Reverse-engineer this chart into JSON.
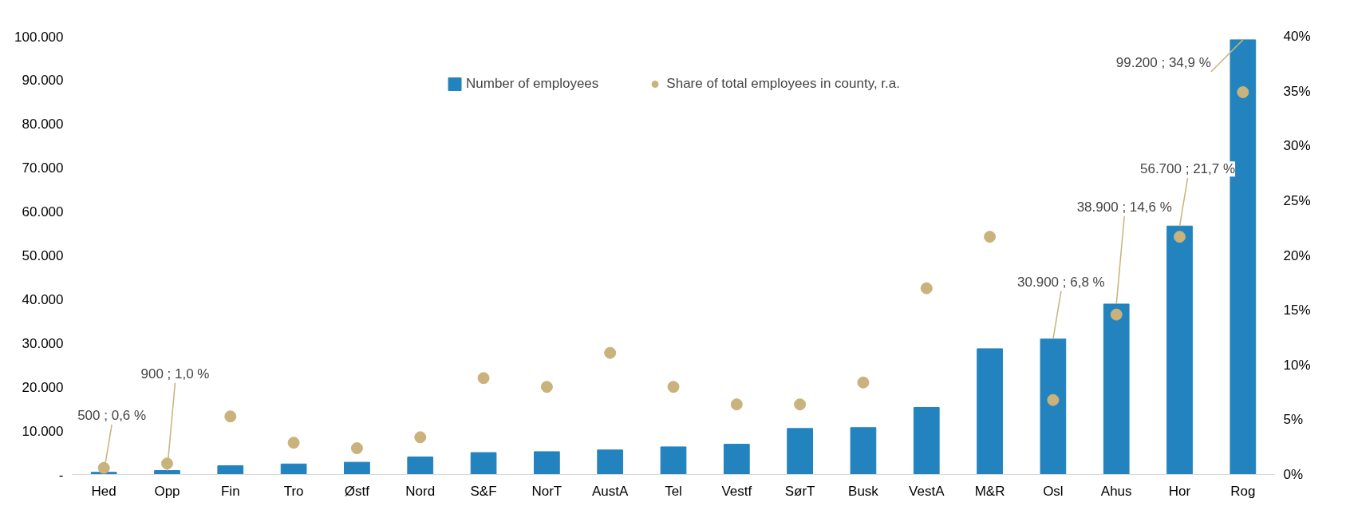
{
  "chart_data": {
    "type": "bar",
    "categories": [
      "Hed",
      "Opp",
      "Fin",
      "Tro",
      "Østf",
      "Nord",
      "S&F",
      "NorT",
      "AustA",
      "Tel",
      "Vestf",
      "SørT",
      "Busk",
      "VestA",
      "M&R",
      "Osl",
      "Ahus",
      "Hor",
      "Rog"
    ],
    "series": [
      {
        "name": "Number of employees",
        "color": "#2383be",
        "values": [
          500,
          900,
          2000,
          2400,
          2800,
          4000,
          5000,
          5200,
          5600,
          6300,
          6900,
          10500,
          10700,
          15300,
          28700,
          30900,
          38900,
          56700,
          99200
        ]
      },
      {
        "name": "Share of total employees in county, r.a.",
        "type": "scatter",
        "axis": "y2",
        "color": "#c9b27c",
        "marker": "circle",
        "x": [
          "Hed",
          "Opp",
          "Fin",
          "Tro",
          "Østf",
          "Nord",
          "S&F",
          "NorT",
          "AustA",
          "Tel",
          "Vestf",
          "SørT",
          "Busk",
          "VestA",
          "M&R",
          "Osl",
          "Ahus",
          "Hor",
          "Rog"
        ],
        "values": [
          0.6,
          1.0,
          5.3,
          2.9,
          2.4,
          3.4,
          8.8,
          8.0,
          11.1,
          8.0,
          6.4,
          6.4,
          8.4,
          17.0,
          21.7,
          6.8,
          14.6,
          21.7,
          34.9
        ]
      }
    ],
    "ylim": [
      0,
      100000
    ],
    "yticks": [
      {
        "value": 0,
        "label": "-"
      },
      {
        "value": 10000,
        "label": "10.000"
      },
      {
        "value": 20000,
        "label": "20.000"
      },
      {
        "value": 30000,
        "label": "30.000"
      },
      {
        "value": 40000,
        "label": "40.000"
      },
      {
        "value": 50000,
        "label": "50.000"
      },
      {
        "value": 60000,
        "label": "60.000"
      },
      {
        "value": 70000,
        "label": "70.000"
      },
      {
        "value": 80000,
        "label": "80.000"
      },
      {
        "value": 90000,
        "label": "90.000"
      },
      {
        "value": 100000,
        "label": "100.000"
      }
    ],
    "y2lim": [
      0,
      40
    ],
    "y2ticks": [
      {
        "value": 0,
        "label": "0%"
      },
      {
        "value": 5,
        "label": "5%"
      },
      {
        "value": 10,
        "label": "10%"
      },
      {
        "value": 15,
        "label": "15%"
      },
      {
        "value": 20,
        "label": "20%"
      },
      {
        "value": 25,
        "label": "25%"
      },
      {
        "value": 30,
        "label": "30%"
      },
      {
        "value": 35,
        "label": "35%"
      },
      {
        "value": 40,
        "label": "40%"
      }
    ],
    "annotations": [
      {
        "text": "500 ; 0,6 %",
        "x": "Hed",
        "y": 500
      },
      {
        "text": "900 ; 1,0 %",
        "x": "Opp",
        "y": 900
      },
      {
        "text": "30.900 ; 6,8 %",
        "x": "Osl",
        "y": 30900
      },
      {
        "text": "38.900 ; 14,6 %",
        "x": "Ahus",
        "y": 38900
      },
      {
        "text": "56.700 ; 21,7 %",
        "x": "Hor",
        "y": 56700
      },
      {
        "text": "99.200 ; 34,9 %",
        "x": "Rog",
        "y": 99200
      }
    ],
    "grid": false,
    "legend": "top"
  }
}
